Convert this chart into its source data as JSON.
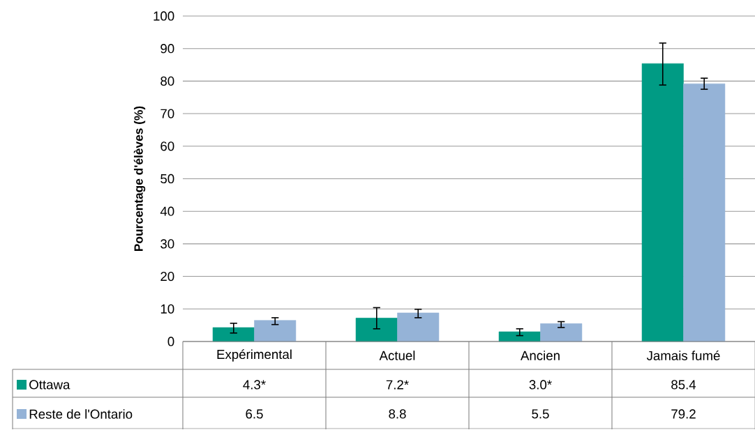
{
  "chart_data": {
    "type": "bar",
    "ylabel": "Pourcentage d'élèves (%)",
    "categories": [
      "Expérimental",
      "Actuel",
      "Ancien",
      "Jamais fumé"
    ],
    "series": [
      {
        "name": "Ottawa",
        "color": "#009b84",
        "values": [
          4.3,
          7.2,
          3.0,
          85.4
        ],
        "value_labels": [
          "4.3*",
          "7.2*",
          "3.0*",
          "85.4"
        ],
        "errors": [
          [
            2.6,
            5.6
          ],
          [
            3.9,
            10.4
          ],
          [
            1.8,
            3.9
          ],
          [
            78.8,
            91.7
          ]
        ]
      },
      {
        "name": "Reste de l'Ontario",
        "color": "#95b3d7",
        "values": [
          6.5,
          8.8,
          5.5,
          79.2
        ],
        "value_labels": [
          "6.5",
          "8.8",
          "5.5",
          "79.2"
        ],
        "errors": [
          [
            5.2,
            7.3
          ],
          [
            7.3,
            9.9
          ],
          [
            4.3,
            6.1
          ],
          [
            77.5,
            80.9
          ]
        ]
      }
    ],
    "ylim": [
      0,
      100
    ],
    "yticks": [
      0,
      10,
      20,
      30,
      40,
      50,
      60,
      70,
      80,
      90,
      100
    ],
    "grid": "y",
    "legend": "bottom"
  }
}
